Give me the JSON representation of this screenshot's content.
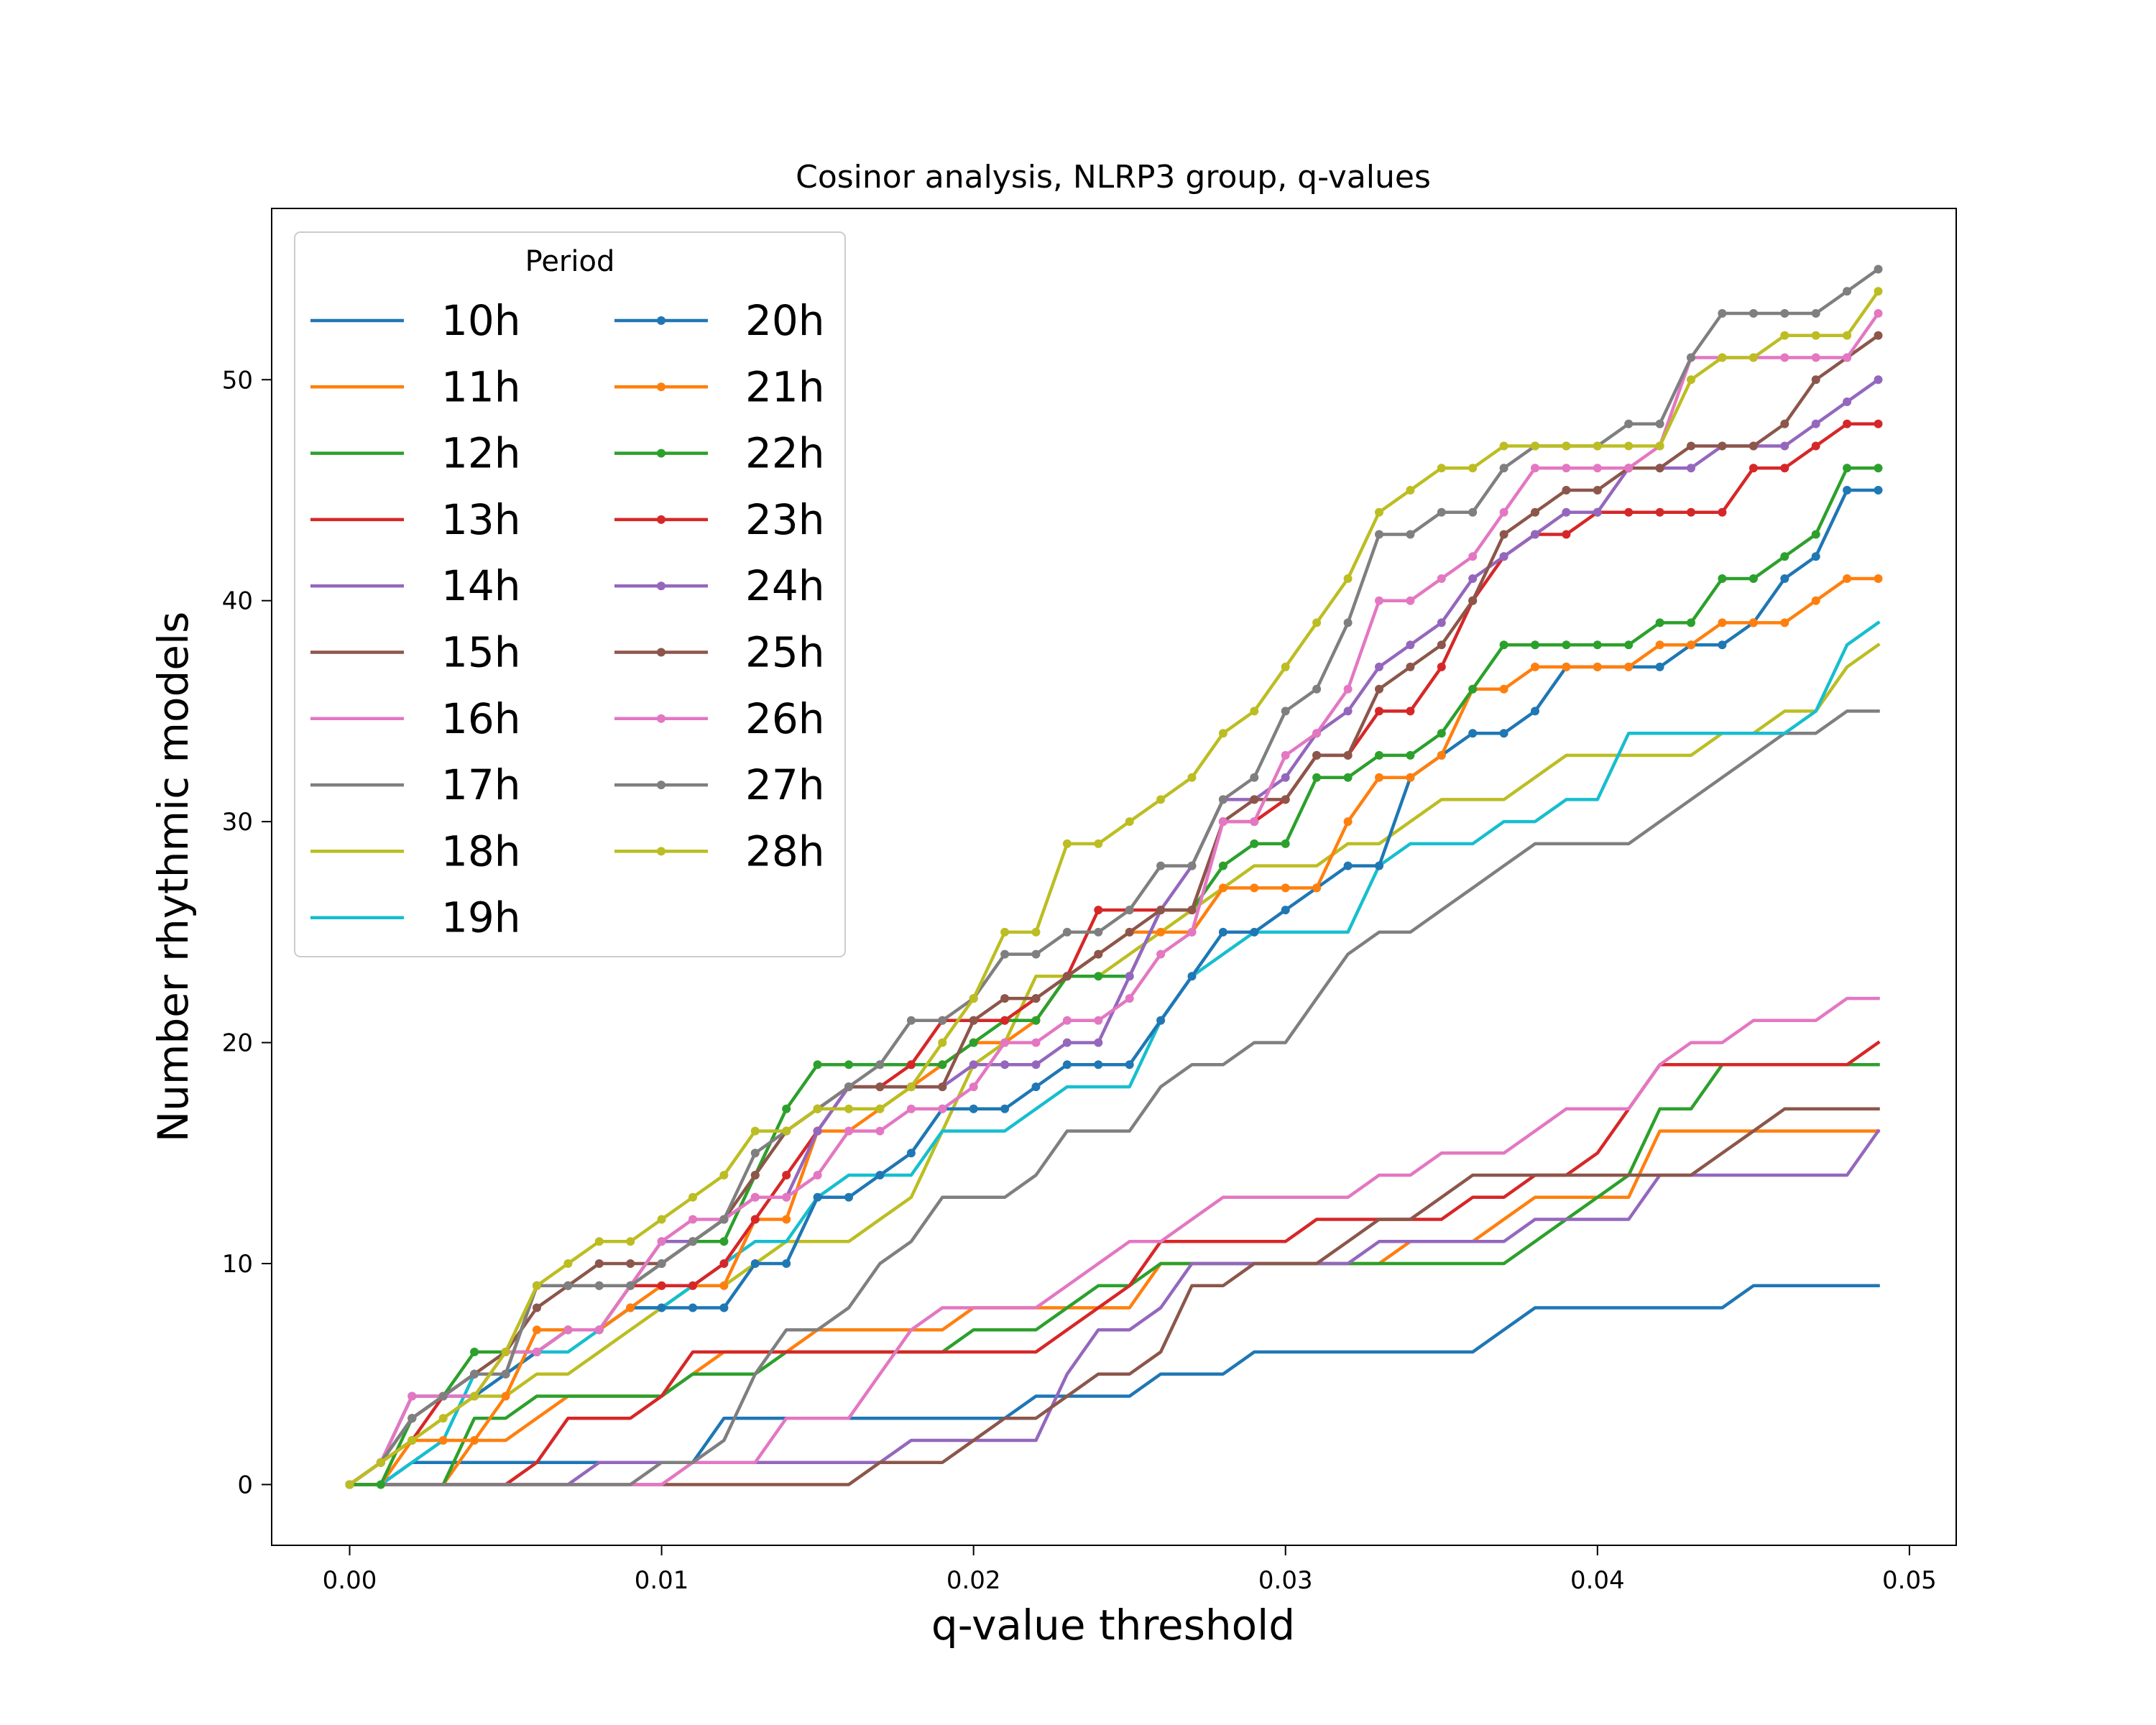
{
  "chart_data": {
    "type": "line",
    "title": "Cosinor analysis, NLRP3 group, q-values",
    "xlabel": "q-value threshold",
    "ylabel": "Number rhythmic models",
    "xlim": [
      -0.0025,
      0.0515
    ],
    "ylim": [
      -2.75,
      57.75
    ],
    "xticks": [
      0.0,
      0.01,
      0.02,
      0.03,
      0.04,
      0.05
    ],
    "xtick_labels": [
      "0.00",
      "0.01",
      "0.02",
      "0.03",
      "0.04",
      "0.05"
    ],
    "yticks": [
      0,
      10,
      20,
      30,
      40,
      50
    ],
    "ytick_labels": [
      "0",
      "10",
      "20",
      "30",
      "40",
      "50"
    ],
    "grid": false,
    "legend": {
      "title": "Period",
      "placement": "top-left",
      "columns": 2
    },
    "x": [
      0.0,
      0.001,
      0.002,
      0.003,
      0.004,
      0.005,
      0.006,
      0.007,
      0.008,
      0.009,
      0.01,
      0.011,
      0.012,
      0.013,
      0.014,
      0.015,
      0.016,
      0.017,
      0.018,
      0.019,
      0.02,
      0.021,
      0.022,
      0.023,
      0.024,
      0.025,
      0.026,
      0.027,
      0.028,
      0.029,
      0.03,
      0.031,
      0.032,
      0.033,
      0.034,
      0.035,
      0.036,
      0.037,
      0.038,
      0.039,
      0.04,
      0.041,
      0.042,
      0.043,
      0.044,
      0.045,
      0.046,
      0.047,
      0.048,
      0.049
    ],
    "series": [
      {
        "name": "10h",
        "color": "#1f77b4",
        "markers": false,
        "values": [
          0,
          0,
          1,
          1,
          1,
          1,
          1,
          1,
          1,
          1,
          1,
          1,
          3,
          3,
          3,
          3,
          3,
          3,
          3,
          3,
          3,
          3,
          4,
          4,
          4,
          4,
          5,
          5,
          5,
          6,
          6,
          6,
          6,
          6,
          6,
          6,
          6,
          7,
          8,
          8,
          8,
          8,
          8,
          8,
          8,
          9,
          9,
          9,
          9,
          9
        ]
      },
      {
        "name": "11h",
        "color": "#ff7f0e",
        "markers": false,
        "values": [
          0,
          0,
          0,
          0,
          2,
          2,
          3,
          4,
          4,
          4,
          4,
          5,
          6,
          6,
          6,
          7,
          7,
          7,
          7,
          7,
          8,
          8,
          8,
          8,
          8,
          8,
          10,
          10,
          10,
          10,
          10,
          10,
          10,
          10,
          11,
          11,
          11,
          12,
          13,
          13,
          13,
          13,
          16,
          16,
          16,
          16,
          16,
          16,
          16,
          16
        ]
      },
      {
        "name": "12h",
        "color": "#2ca02c",
        "markers": false,
        "values": [
          0,
          0,
          0,
          0,
          3,
          3,
          4,
          4,
          4,
          4,
          4,
          5,
          5,
          5,
          6,
          6,
          6,
          6,
          6,
          6,
          7,
          7,
          7,
          8,
          9,
          9,
          10,
          10,
          10,
          10,
          10,
          10,
          10,
          10,
          10,
          10,
          10,
          10,
          11,
          12,
          13,
          14,
          17,
          17,
          19,
          19,
          19,
          19,
          19,
          19
        ]
      },
      {
        "name": "13h",
        "color": "#d62728",
        "markers": false,
        "values": [
          0,
          0,
          0,
          0,
          0,
          0,
          1,
          3,
          3,
          3,
          4,
          6,
          6,
          6,
          6,
          6,
          6,
          6,
          6,
          6,
          6,
          6,
          6,
          7,
          8,
          9,
          11,
          11,
          11,
          11,
          11,
          12,
          12,
          12,
          12,
          12,
          13,
          13,
          14,
          14,
          15,
          17,
          19,
          19,
          19,
          19,
          19,
          19,
          19,
          20
        ]
      },
      {
        "name": "14h",
        "color": "#9467bd",
        "markers": false,
        "values": [
          0,
          0,
          0,
          0,
          0,
          0,
          0,
          0,
          1,
          1,
          1,
          1,
          1,
          1,
          1,
          1,
          1,
          1,
          2,
          2,
          2,
          2,
          2,
          5,
          7,
          7,
          8,
          10,
          10,
          10,
          10,
          10,
          10,
          11,
          11,
          11,
          11,
          11,
          12,
          12,
          12,
          12,
          14,
          14,
          14,
          14,
          14,
          14,
          14,
          16
        ]
      },
      {
        "name": "15h",
        "color": "#8c564b",
        "markers": false,
        "values": [
          0,
          0,
          0,
          0,
          0,
          0,
          0,
          0,
          0,
          0,
          0,
          0,
          0,
          0,
          0,
          0,
          0,
          1,
          1,
          1,
          2,
          3,
          3,
          4,
          5,
          5,
          6,
          9,
          9,
          10,
          10,
          10,
          11,
          12,
          12,
          13,
          14,
          14,
          14,
          14,
          14,
          14,
          14,
          14,
          15,
          16,
          17,
          17,
          17,
          17
        ]
      },
      {
        "name": "16h",
        "color": "#e377c2",
        "markers": false,
        "values": [
          0,
          0,
          0,
          0,
          0,
          0,
          0,
          0,
          0,
          0,
          0,
          1,
          1,
          1,
          3,
          3,
          3,
          5,
          7,
          8,
          8,
          8,
          8,
          9,
          10,
          11,
          11,
          12,
          13,
          13,
          13,
          13,
          13,
          14,
          14,
          15,
          15,
          15,
          16,
          17,
          17,
          17,
          19,
          20,
          20,
          21,
          21,
          21,
          22,
          22
        ]
      },
      {
        "name": "17h",
        "color": "#7f7f7f",
        "markers": false,
        "values": [
          0,
          0,
          0,
          0,
          0,
          0,
          0,
          0,
          0,
          0,
          1,
          1,
          2,
          5,
          7,
          7,
          8,
          10,
          11,
          13,
          13,
          13,
          14,
          16,
          16,
          16,
          18,
          19,
          19,
          20,
          20,
          22,
          24,
          25,
          25,
          26,
          27,
          28,
          29,
          29,
          29,
          29,
          30,
          31,
          32,
          33,
          34,
          34,
          35,
          35
        ]
      },
      {
        "name": "18h",
        "color": "#bcbd22",
        "markers": false,
        "values": [
          0,
          1,
          2,
          3,
          4,
          4,
          5,
          5,
          6,
          7,
          8,
          9,
          9,
          10,
          11,
          11,
          11,
          12,
          13,
          16,
          19,
          20,
          23,
          23,
          23,
          24,
          25,
          26,
          27,
          28,
          28,
          28,
          29,
          29,
          30,
          31,
          31,
          31,
          32,
          33,
          33,
          33,
          33,
          33,
          34,
          34,
          35,
          35,
          37,
          38
        ]
      },
      {
        "name": "19h",
        "color": "#17becf",
        "markers": false,
        "values": [
          0,
          0,
          1,
          2,
          5,
          5,
          6,
          6,
          7,
          8,
          8,
          9,
          10,
          11,
          11,
          13,
          14,
          14,
          14,
          16,
          16,
          16,
          17,
          18,
          18,
          18,
          21,
          23,
          24,
          25,
          25,
          25,
          25,
          28,
          29,
          29,
          29,
          30,
          30,
          31,
          31,
          34,
          34,
          34,
          34,
          34,
          34,
          35,
          38,
          39
        ]
      },
      {
        "name": "20h",
        "color": "#1f77b4",
        "markers": true,
        "values": [
          0,
          1,
          4,
          4,
          4,
          5,
          6,
          7,
          7,
          8,
          8,
          8,
          8,
          10,
          10,
          13,
          13,
          14,
          15,
          17,
          17,
          17,
          18,
          19,
          19,
          19,
          21,
          23,
          25,
          25,
          26,
          27,
          28,
          28,
          32,
          33,
          34,
          34,
          35,
          37,
          37,
          37,
          37,
          38,
          38,
          39,
          41,
          42,
          45,
          45
        ]
      },
      {
        "name": "21h",
        "color": "#ff7f0e",
        "markers": true,
        "values": [
          0,
          0,
          2,
          2,
          2,
          4,
          7,
          7,
          7,
          8,
          9,
          9,
          9,
          12,
          12,
          16,
          16,
          17,
          18,
          19,
          20,
          20,
          21,
          23,
          24,
          25,
          25,
          25,
          27,
          27,
          27,
          27,
          30,
          32,
          32,
          33,
          36,
          36,
          37,
          37,
          37,
          37,
          38,
          38,
          39,
          39,
          39,
          40,
          41,
          41
        ]
      },
      {
        "name": "22h",
        "color": "#2ca02c",
        "markers": true,
        "values": [
          0,
          0,
          3,
          4,
          6,
          6,
          6,
          7,
          7,
          9,
          10,
          11,
          11,
          14,
          17,
          19,
          19,
          19,
          19,
          19,
          20,
          21,
          21,
          23,
          23,
          23,
          26,
          26,
          28,
          29,
          29,
          32,
          32,
          33,
          33,
          34,
          36,
          38,
          38,
          38,
          38,
          38,
          39,
          39,
          41,
          41,
          42,
          43,
          46,
          46
        ]
      },
      {
        "name": "23h",
        "color": "#d62728",
        "markers": true,
        "values": [
          0,
          1,
          2,
          4,
          5,
          5,
          9,
          9,
          9,
          9,
          9,
          9,
          10,
          12,
          14,
          16,
          18,
          18,
          19,
          21,
          21,
          21,
          22,
          23,
          26,
          26,
          26,
          26,
          30,
          30,
          31,
          33,
          33,
          35,
          35,
          37,
          40,
          42,
          43,
          43,
          44,
          44,
          44,
          44,
          44,
          46,
          46,
          47,
          48,
          48
        ]
      },
      {
        "name": "24h",
        "color": "#9467bd",
        "markers": true,
        "values": [
          0,
          1,
          3,
          4,
          5,
          5,
          9,
          9,
          9,
          9,
          11,
          11,
          12,
          13,
          13,
          16,
          18,
          18,
          18,
          18,
          19,
          19,
          19,
          20,
          20,
          23,
          26,
          28,
          31,
          31,
          32,
          34,
          35,
          37,
          38,
          39,
          41,
          42,
          43,
          44,
          44,
          46,
          46,
          46,
          47,
          47,
          47,
          48,
          49,
          50
        ]
      },
      {
        "name": "25h",
        "color": "#8c564b",
        "markers": true,
        "values": [
          0,
          1,
          3,
          4,
          5,
          6,
          8,
          9,
          10,
          10,
          10,
          11,
          12,
          14,
          16,
          17,
          18,
          18,
          18,
          18,
          21,
          22,
          22,
          23,
          24,
          25,
          26,
          26,
          30,
          31,
          31,
          33,
          33,
          36,
          37,
          38,
          40,
          43,
          44,
          45,
          45,
          46,
          46,
          47,
          47,
          47,
          48,
          50,
          51,
          52
        ]
      },
      {
        "name": "26h",
        "color": "#e377c2",
        "markers": true,
        "values": [
          0,
          1,
          4,
          4,
          4,
          6,
          6,
          7,
          7,
          9,
          11,
          12,
          12,
          13,
          13,
          14,
          16,
          16,
          17,
          17,
          18,
          20,
          20,
          21,
          21,
          22,
          24,
          25,
          30,
          30,
          33,
          34,
          36,
          40,
          40,
          41,
          42,
          44,
          46,
          46,
          46,
          46,
          47,
          51,
          51,
          51,
          51,
          51,
          51,
          53
        ]
      },
      {
        "name": "27h",
        "color": "#7f7f7f",
        "markers": true,
        "values": [
          0,
          1,
          3,
          4,
          5,
          5,
          9,
          9,
          9,
          9,
          10,
          11,
          12,
          15,
          16,
          17,
          18,
          19,
          21,
          21,
          22,
          24,
          24,
          25,
          25,
          26,
          28,
          28,
          31,
          32,
          35,
          36,
          39,
          43,
          43,
          44,
          44,
          46,
          47,
          47,
          47,
          48,
          48,
          51,
          53,
          53,
          53,
          53,
          54,
          55
        ]
      },
      {
        "name": "28h",
        "color": "#bcbd22",
        "markers": true,
        "values": [
          0,
          1,
          2,
          3,
          4,
          6,
          9,
          10,
          11,
          11,
          12,
          13,
          14,
          16,
          16,
          17,
          17,
          17,
          18,
          20,
          22,
          25,
          25,
          29,
          29,
          30,
          31,
          32,
          34,
          35,
          37,
          39,
          41,
          44,
          45,
          46,
          46,
          47,
          47,
          47,
          47,
          47,
          47,
          50,
          51,
          51,
          52,
          52,
          52,
          54
        ]
      }
    ]
  }
}
